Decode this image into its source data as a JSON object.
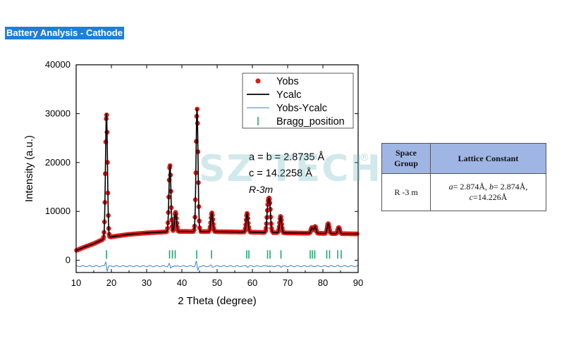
{
  "page": {
    "title": "Battery Analysis - Cathode"
  },
  "colors": {
    "title_bg": "#1f7fd6",
    "yobs": "#e01a1a",
    "ycalc": "#000000",
    "diff": "#3a7fd5",
    "bragg": "#20a86a",
    "table_header": "#9fb6e4"
  },
  "watermark": {
    "text": "SZ TECH",
    "mark": "®"
  },
  "chart_data": {
    "type": "line",
    "xlabel": "2 Theta (degree)",
    "ylabel": "Intensity (a.u.)",
    "xlim": [
      10,
      90
    ],
    "ylim": [
      -2500,
      40000
    ],
    "xticks": [
      10,
      20,
      30,
      40,
      50,
      60,
      70,
      80,
      90
    ],
    "yticks": [
      0,
      10000,
      20000,
      30000,
      40000
    ],
    "ytick_labels": [
      "0",
      "10000",
      "20000",
      "30000",
      "40000"
    ],
    "grid": false,
    "legend_position": "top-right",
    "series": [
      {
        "name": "Yobs",
        "style": "markers"
      },
      {
        "name": "Ycalc",
        "style": "line"
      },
      {
        "name": "Yobs-Ycalc",
        "style": "line"
      },
      {
        "name": "Bragg_position",
        "style": "ticks"
      }
    ],
    "background": {
      "x": [
        10,
        12,
        15,
        18,
        20,
        25,
        30,
        35,
        40,
        50,
        60,
        70,
        80,
        90
      ],
      "y": [
        2000,
        2600,
        3400,
        4400,
        4800,
        5300,
        5600,
        5800,
        5900,
        5850,
        5750,
        5600,
        5500,
        5400
      ]
    },
    "peaks": [
      {
        "x": 18.6,
        "y": 30000
      },
      {
        "x": 36.6,
        "y": 19500
      },
      {
        "x": 38.2,
        "y": 9800
      },
      {
        "x": 44.3,
        "y": 31000
      },
      {
        "x": 48.5,
        "y": 9700
      },
      {
        "x": 58.5,
        "y": 9600
      },
      {
        "x": 64.4,
        "y": 10600
      },
      {
        "x": 64.9,
        "y": 11200
      },
      {
        "x": 68.0,
        "y": 9000
      },
      {
        "x": 76.9,
        "y": 6700
      },
      {
        "x": 77.8,
        "y": 6900
      },
      {
        "x": 81.5,
        "y": 7500
      },
      {
        "x": 84.5,
        "y": 6700
      }
    ],
    "bragg_positions": [
      18.6,
      36.5,
      37.3,
      38.1,
      44.2,
      48.4,
      58.4,
      59.0,
      64.3,
      65.0,
      68.1,
      76.4,
      77.0,
      77.7,
      81.1,
      81.9,
      84.2,
      85.2
    ],
    "bragg_level": 1200,
    "diff_baseline": -1200,
    "annotations": [
      {
        "text": "a = b = 2.8735 Å",
        "x": 59,
        "y": 20500
      },
      {
        "text": "c = 14.2258 Å",
        "x": 59,
        "y": 17200
      },
      {
        "text": "R-3m",
        "x": 59,
        "y": 13800,
        "italic": true
      }
    ]
  },
  "table": {
    "headers": [
      "Space Group",
      "Lattice Constant"
    ],
    "space_group": "R -3 m",
    "lattice": {
      "a_label": "a",
      "a_value": "= 2.874Å, ",
      "b_label": "b",
      "b_value": "= 2.874Å, ",
      "c_label": "c",
      "c_value": "=14.226Å"
    }
  }
}
